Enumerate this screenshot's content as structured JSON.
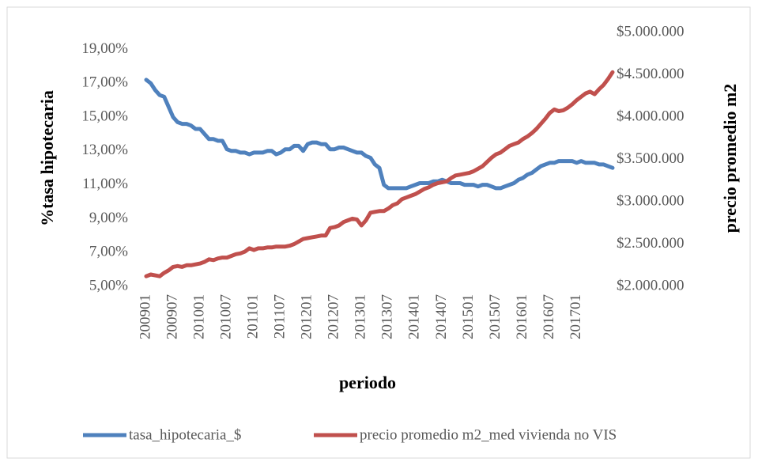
{
  "chart_data": {
    "type": "line",
    "x_label": "periodo",
    "y_label": "%tasa hipotecaria",
    "y2_label": "precio promedio m2",
    "categories": [
      "200901",
      null,
      null,
      null,
      null,
      null,
      "200907",
      null,
      null,
      null,
      null,
      null,
      "201001",
      null,
      null,
      null,
      null,
      null,
      "201007",
      null,
      null,
      null,
      null,
      null,
      "201101",
      null,
      null,
      null,
      null,
      null,
      "201107",
      null,
      null,
      null,
      null,
      null,
      "201201",
      null,
      null,
      null,
      null,
      null,
      "201207",
      null,
      null,
      null,
      null,
      null,
      "201301",
      null,
      null,
      null,
      null,
      null,
      "201307",
      null,
      null,
      null,
      null,
      null,
      "201401",
      null,
      null,
      null,
      null,
      null,
      "201407",
      null,
      null,
      null,
      null,
      null,
      "201501",
      null,
      null,
      null,
      null,
      null,
      "201507",
      null,
      null,
      null,
      null,
      null,
      "201601",
      null,
      null,
      null,
      null,
      null,
      "201607",
      null,
      null,
      null,
      null,
      null,
      "201701",
      null,
      null,
      null,
      null,
      null,
      null,
      null,
      null
    ],
    "series": [
      {
        "name": "tasa_hipotecaria_$",
        "color": "#4f81bd",
        "values": [
          17.2,
          17.0,
          16.6,
          16.3,
          16.2,
          15.6,
          15.0,
          14.7,
          14.6,
          14.6,
          14.5,
          14.3,
          14.3,
          14.0,
          13.7,
          13.7,
          13.6,
          13.6,
          13.1,
          13.0,
          13.0,
          12.9,
          12.9,
          12.8,
          12.9,
          12.9,
          12.9,
          13.0,
          13.0,
          12.8,
          12.9,
          13.1,
          13.1,
          13.3,
          13.3,
          13.0,
          13.4,
          13.5,
          13.5,
          13.4,
          13.4,
          13.1,
          13.1,
          13.2,
          13.2,
          13.1,
          13.0,
          12.9,
          12.9,
          12.7,
          12.6,
          12.2,
          12.0,
          11.0,
          10.8,
          10.8,
          10.8,
          10.8,
          10.8,
          10.9,
          11.0,
          11.1,
          11.1,
          11.1,
          11.2,
          11.2,
          11.3,
          11.2,
          11.1,
          11.1,
          11.1,
          11.0,
          11.0,
          11.0,
          10.9,
          11.0,
          11.0,
          10.9,
          10.8,
          10.8,
          10.9,
          11.0,
          11.1,
          11.3,
          11.4,
          11.6,
          11.7,
          11.9,
          12.1,
          12.2,
          12.3,
          12.3,
          12.4,
          12.4,
          12.4,
          12.4,
          12.3,
          12.4,
          12.3,
          12.3,
          12.3,
          12.2,
          12.2,
          12.1,
          12.0
        ]
      },
      {
        "name": "precio promedio m2_med vivienda no VIS",
        "color": "#c0504d",
        "axis": "y2",
        "values": [
          2120000,
          2140000,
          2130000,
          2120000,
          2160000,
          2190000,
          2230000,
          2240000,
          2230000,
          2250000,
          2250000,
          2260000,
          2270000,
          2290000,
          2320000,
          2310000,
          2330000,
          2340000,
          2340000,
          2360000,
          2380000,
          2390000,
          2410000,
          2450000,
          2430000,
          2450000,
          2450000,
          2460000,
          2460000,
          2470000,
          2470000,
          2470000,
          2480000,
          2500000,
          2530000,
          2560000,
          2570000,
          2580000,
          2590000,
          2600000,
          2600000,
          2690000,
          2700000,
          2720000,
          2760000,
          2780000,
          2800000,
          2790000,
          2720000,
          2780000,
          2870000,
          2880000,
          2890000,
          2890000,
          2920000,
          2960000,
          2980000,
          3030000,
          3050000,
          3070000,
          3090000,
          3120000,
          3150000,
          3170000,
          3200000,
          3220000,
          3230000,
          3240000,
          3280000,
          3310000,
          3320000,
          3330000,
          3340000,
          3360000,
          3390000,
          3420000,
          3470000,
          3520000,
          3560000,
          3580000,
          3620000,
          3660000,
          3680000,
          3700000,
          3740000,
          3770000,
          3810000,
          3860000,
          3920000,
          3980000,
          4050000,
          4090000,
          4070000,
          4080000,
          4110000,
          4150000,
          4200000,
          4240000,
          4280000,
          4300000,
          4270000,
          4330000,
          4380000,
          4450000,
          4530000
        ]
      }
    ],
    "ylim": [
      5,
      20
    ],
    "yticks": [
      {
        "value": 5,
        "label": "5,00%"
      },
      {
        "value": 7,
        "label": "7,00%"
      },
      {
        "value": 9,
        "label": "9,00%"
      },
      {
        "value": 11,
        "label": "11,00%"
      },
      {
        "value": 13,
        "label": "13,00%"
      },
      {
        "value": 15,
        "label": "15,00%"
      },
      {
        "value": 17,
        "label": "17,00%"
      },
      {
        "value": 19,
        "label": "19,00%"
      }
    ],
    "y2lim": [
      2000000,
      5000000
    ],
    "y2ticks": [
      {
        "value": 2000000,
        "label": "$2.000.000"
      },
      {
        "value": 2500000,
        "label": "$2.500.000"
      },
      {
        "value": 3000000,
        "label": "$3.000.000"
      },
      {
        "value": 3500000,
        "label": "$3.500.000"
      },
      {
        "value": 4000000,
        "label": "$4.000.000"
      },
      {
        "value": 4500000,
        "label": "$4.500.000"
      },
      {
        "value": 5000000,
        "label": "$5.000.000"
      }
    ],
    "legend": "bottom"
  }
}
